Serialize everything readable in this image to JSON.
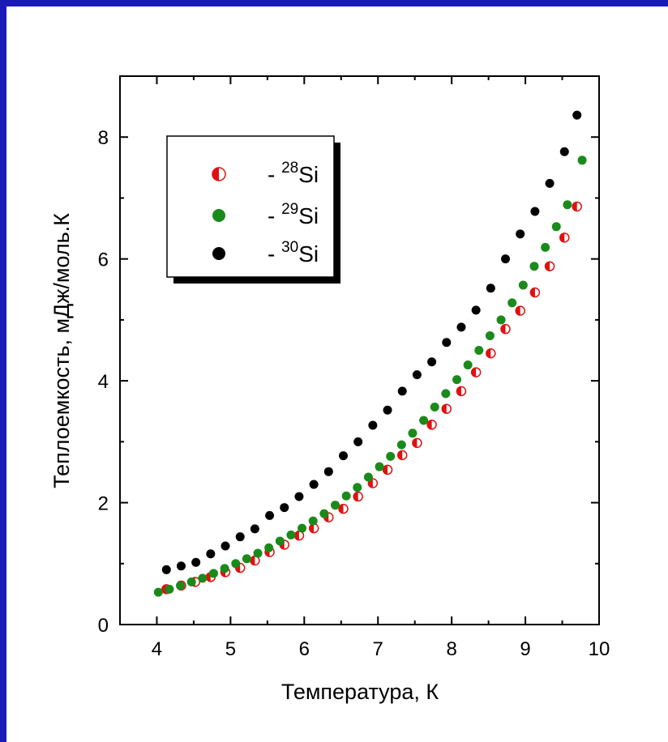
{
  "chart_data": {
    "type": "scatter",
    "title": "",
    "xlabel": "Температура, К",
    "ylabel": "Теплоемкость, мДж/моль.К",
    "xlim": [
      3.5,
      10
    ],
    "ylim": [
      0,
      9
    ],
    "xticks": [
      "4",
      "5",
      "6",
      "7",
      "8",
      "9",
      "10"
    ],
    "yticks": [
      "0",
      "2",
      "4",
      "6",
      "8"
    ],
    "legend_position": "top-left",
    "series": [
      {
        "name": "- 28Si",
        "mass_number": "28",
        "element": "Si",
        "marker": "half-filled",
        "color": "#e01010",
        "x": [
          4.13,
          4.33,
          4.52,
          4.73,
          4.93,
          5.13,
          5.33,
          5.53,
          5.73,
          5.93,
          6.13,
          6.33,
          6.53,
          6.73,
          6.93,
          7.13,
          7.33,
          7.53,
          7.73,
          7.93,
          8.13,
          8.33,
          8.53,
          8.73,
          8.93,
          9.13,
          9.33,
          9.53,
          9.7
        ],
        "y": [
          0.58,
          0.64,
          0.7,
          0.78,
          0.86,
          0.93,
          1.05,
          1.19,
          1.31,
          1.46,
          1.58,
          1.76,
          1.9,
          2.1,
          2.32,
          2.54,
          2.78,
          2.98,
          3.28,
          3.54,
          3.83,
          4.14,
          4.45,
          4.85,
          5.15,
          5.45,
          5.88,
          6.35,
          6.86
        ]
      },
      {
        "name": "- 29Si",
        "mass_number": "29",
        "element": "Si",
        "marker": "filled",
        "color": "#1a8a1a",
        "x": [
          4.02,
          4.17,
          4.32,
          4.47,
          4.62,
          4.77,
          4.92,
          5.07,
          5.22,
          5.37,
          5.52,
          5.67,
          5.82,
          5.97,
          6.12,
          6.27,
          6.42,
          6.57,
          6.72,
          6.87,
          7.02,
          7.17,
          7.32,
          7.47,
          7.62,
          7.77,
          7.92,
          8.07,
          8.22,
          8.37,
          8.52,
          8.67,
          8.82,
          8.97,
          9.12,
          9.27,
          9.42,
          9.57,
          9.77
        ],
        "y": [
          0.53,
          0.58,
          0.64,
          0.7,
          0.76,
          0.84,
          0.92,
          1.0,
          1.08,
          1.17,
          1.26,
          1.37,
          1.47,
          1.58,
          1.7,
          1.82,
          1.96,
          2.11,
          2.25,
          2.42,
          2.59,
          2.76,
          2.95,
          3.14,
          3.35,
          3.57,
          3.79,
          4.02,
          4.26,
          4.5,
          4.74,
          5.0,
          5.28,
          5.57,
          5.88,
          6.19,
          6.53,
          6.89,
          7.62
        ]
      },
      {
        "name": "- 30Si",
        "mass_number": "30",
        "element": "Si",
        "marker": "filled",
        "color": "#000000",
        "x": [
          4.13,
          4.33,
          4.53,
          4.73,
          4.93,
          5.13,
          5.33,
          5.53,
          5.73,
          5.93,
          6.13,
          6.33,
          6.53,
          6.73,
          6.93,
          7.13,
          7.33,
          7.53,
          7.73,
          7.93,
          8.13,
          8.33,
          8.53,
          8.73,
          8.93,
          9.13,
          9.33,
          9.53,
          9.7
        ],
        "y": [
          0.9,
          0.96,
          1.02,
          1.16,
          1.29,
          1.44,
          1.57,
          1.79,
          1.92,
          2.1,
          2.3,
          2.51,
          2.77,
          3.0,
          3.27,
          3.52,
          3.83,
          4.1,
          4.31,
          4.63,
          4.88,
          5.16,
          5.52,
          6.0,
          6.41,
          6.78,
          7.24,
          7.76,
          8.36
        ]
      }
    ]
  }
}
